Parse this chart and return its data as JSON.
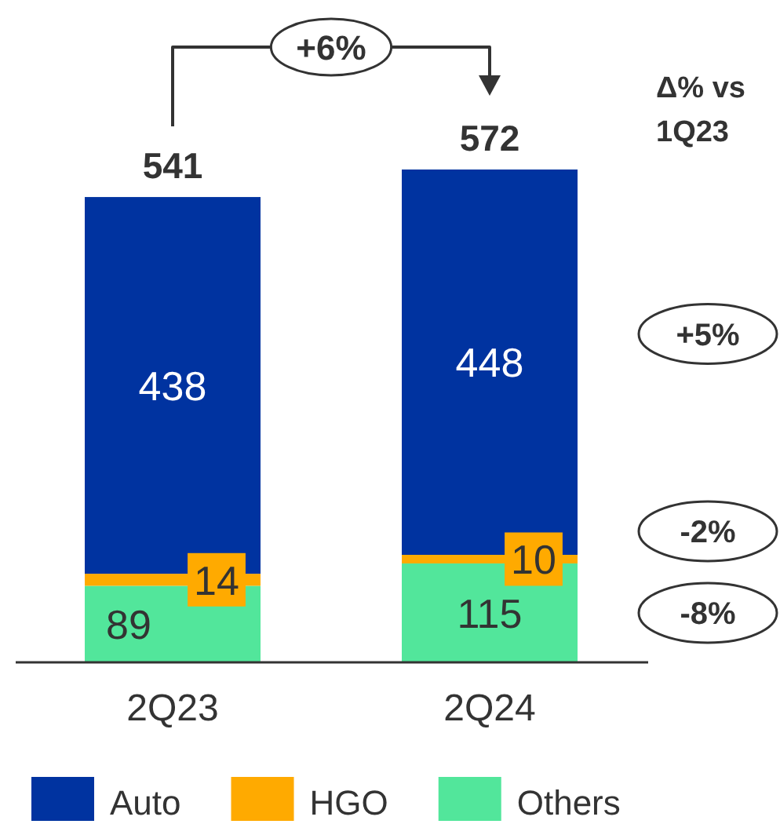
{
  "chart_data": {
    "type": "bar",
    "stacked": true,
    "categories": [
      "2Q23",
      "2Q24"
    ],
    "series": [
      {
        "name": "Others",
        "color": "#52e69b",
        "values": [
          89,
          115
        ]
      },
      {
        "name": "HGO",
        "color": "#ffaa00",
        "values": [
          14,
          10
        ]
      },
      {
        "name": "Auto",
        "color": "#0033a0",
        "values": [
          438,
          448
        ]
      }
    ],
    "data_labels": true,
    "totals": [
      "541",
      "572"
    ],
    "legend": "bottom",
    "annotations": [
      "+6%",
      "Δ% vs 1Q23",
      "+5%",
      "-2%",
      "-8%"
    ]
  }
}
